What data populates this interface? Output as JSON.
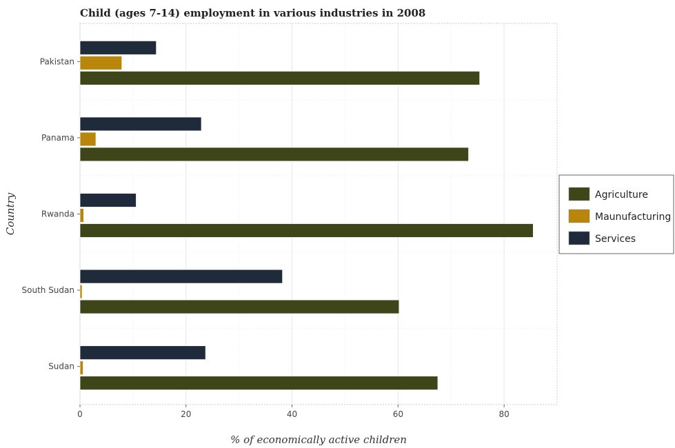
{
  "chart_data": {
    "type": "bar",
    "orientation": "horizontal",
    "title": "Child (ages 7-14) employment in various industries in 2008",
    "xlabel": "% of economically active children",
    "ylabel": "Country",
    "categories": [
      "Pakistan",
      "Panama",
      "Rwanda",
      "South Sudan",
      "Sudan"
    ],
    "xlim": [
      0,
      90
    ],
    "xticks": [
      0,
      20,
      40,
      60,
      80
    ],
    "grid": true,
    "legend_position": "right",
    "series": [
      {
        "name": "Agriculture",
        "color": "#3d4519",
        "values": [
          75.4,
          73.3,
          85.5,
          60.2,
          67.5
        ]
      },
      {
        "name": "Maunufacturing",
        "color": "#b8860b",
        "values": [
          7.9,
          3.0,
          0.7,
          0.4,
          0.6
        ]
      },
      {
        "name": "Services",
        "color": "#1f2b3a",
        "values": [
          14.4,
          22.9,
          10.6,
          38.2,
          23.7
        ]
      }
    ]
  }
}
